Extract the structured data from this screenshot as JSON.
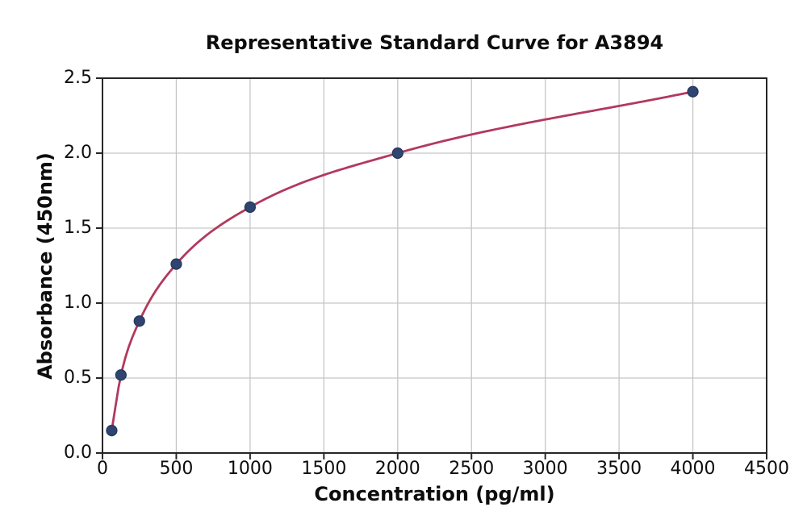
{
  "chart_data": {
    "type": "scatter",
    "title": "Representative Standard Curve for A3894",
    "xlabel": "Concentration (pg/ml)",
    "ylabel": "Absorbance (450nm)",
    "series": [
      {
        "name": "standard-points",
        "x": [
          62.5,
          125,
          250,
          500,
          1000,
          2000,
          4000
        ],
        "y": [
          0.15,
          0.52,
          0.88,
          1.26,
          1.64,
          2.0,
          2.41
        ]
      }
    ],
    "fit": "smooth-curve-through-points",
    "xlim": [
      0,
      4500
    ],
    "ylim": [
      0,
      2.5
    ],
    "x_ticks": [
      0,
      500,
      1000,
      1500,
      2000,
      2500,
      3000,
      3500,
      4000,
      4500
    ],
    "y_ticks": [
      0,
      0.5,
      1,
      1.5,
      2,
      2.5
    ],
    "x_tick_labels": [
      "0",
      "500",
      "1000",
      "1500",
      "2000",
      "2500",
      "3000",
      "3500",
      "4000",
      "4500"
    ],
    "y_tick_labels": [
      "0.0",
      "0.5",
      "1.0",
      "1.5",
      "2.0",
      "2.5"
    ],
    "grid": true,
    "legend": "none",
    "colors": {
      "curve": "#b2395e",
      "marker": "#2f4470",
      "marker_edge": "#243757",
      "grid": "#c6c6c6",
      "axis": "#262626",
      "text": "#0d0d0d",
      "background": "#ffffff"
    },
    "marker_radius": 6.5,
    "curve_width": 2.8
  }
}
